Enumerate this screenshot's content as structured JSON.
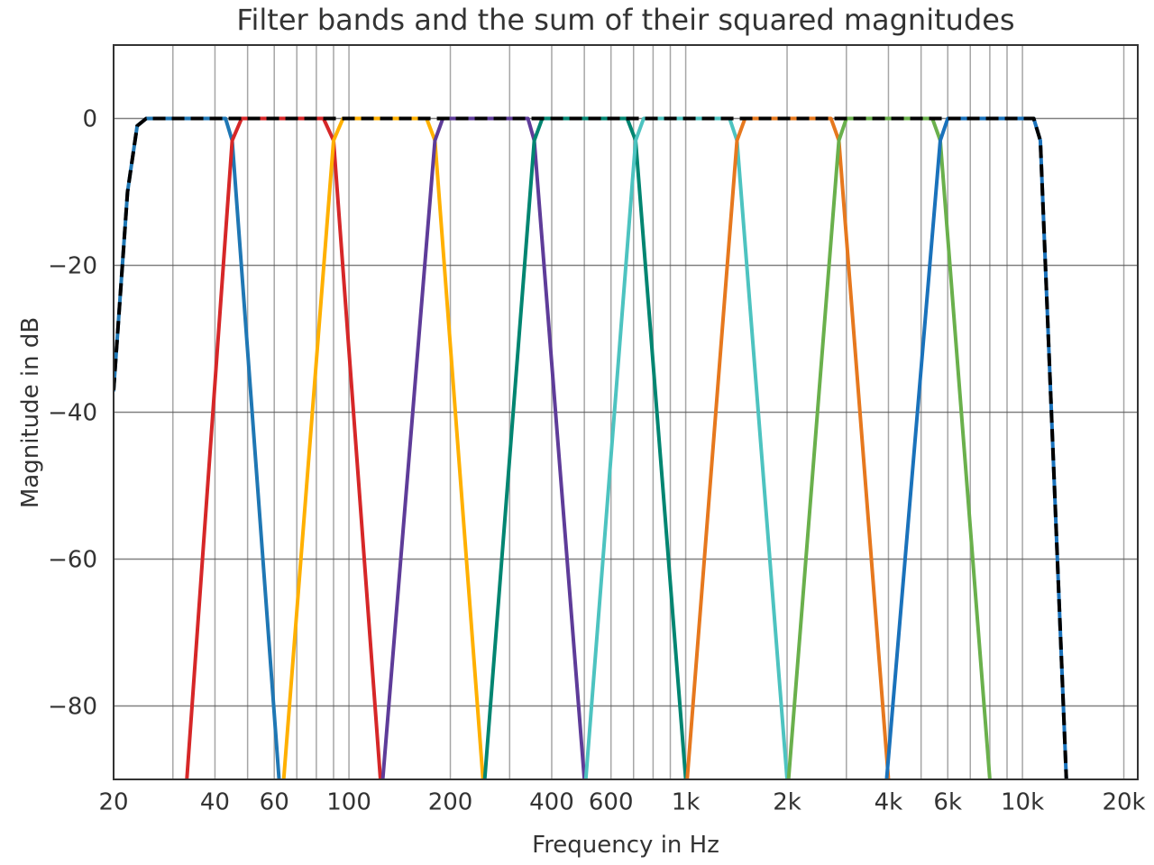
{
  "chart_data": {
    "type": "line",
    "title": "Filter bands and the sum of their squared magnitudes",
    "xlabel": "Frequency in Hz",
    "ylabel": "Magnitude in dB",
    "xscale": "log",
    "xlim": [
      20,
      22000
    ],
    "ylim": [
      -90,
      10
    ],
    "grid": true,
    "legend": "none",
    "x_ticks": [
      {
        "value": 20,
        "label": "20"
      },
      {
        "value": 40,
        "label": "40"
      },
      {
        "value": 60,
        "label": "60"
      },
      {
        "value": 100,
        "label": "100"
      },
      {
        "value": 200,
        "label": "200"
      },
      {
        "value": 400,
        "label": "400"
      },
      {
        "value": 600,
        "label": "600"
      },
      {
        "value": 1000,
        "label": "1k"
      },
      {
        "value": 2000,
        "label": "2k"
      },
      {
        "value": 4000,
        "label": "4k"
      },
      {
        "value": 6000,
        "label": "6k"
      },
      {
        "value": 10000,
        "label": "10k"
      },
      {
        "value": 20000,
        "label": "20k"
      }
    ],
    "x_minor_grid": [
      30,
      50,
      70,
      80,
      90,
      300,
      500,
      700,
      800,
      900,
      3000,
      5000,
      7000,
      8000,
      9000
    ],
    "y_ticks": [
      {
        "value": 0,
        "label": "0"
      },
      {
        "value": -20,
        "label": "−20"
      },
      {
        "value": -40,
        "label": "−40"
      },
      {
        "value": -60,
        "label": "−60"
      },
      {
        "value": -80,
        "label": "−80"
      }
    ],
    "series": [
      {
        "color": "#1f77b4",
        "points": [
          [
            20,
            -37
          ],
          [
            22,
            -10
          ],
          [
            23.5,
            -1
          ],
          [
            25,
            0
          ],
          [
            43,
            0
          ],
          [
            45,
            -3
          ],
          [
            62,
            -90
          ]
        ]
      },
      {
        "color": "#d62728",
        "points": [
          [
            33,
            -90
          ],
          [
            45,
            -3
          ],
          [
            48,
            0
          ],
          [
            84,
            0
          ],
          [
            90,
            -3
          ],
          [
            124,
            -90
          ]
        ]
      },
      {
        "color": "#ffb000",
        "points": [
          [
            64,
            -90
          ],
          [
            90,
            -3
          ],
          [
            96,
            0
          ],
          [
            170,
            0
          ],
          [
            180,
            -3
          ],
          [
            250,
            -90
          ]
        ]
      },
      {
        "color": "#5e3c99",
        "points": [
          [
            126,
            -90
          ],
          [
            180,
            -3
          ],
          [
            190,
            0
          ],
          [
            340,
            0
          ],
          [
            355,
            -3
          ],
          [
            500,
            -90
          ]
        ]
      },
      {
        "color": "#018571",
        "points": [
          [
            253,
            -90
          ],
          [
            355,
            -3
          ],
          [
            375,
            0
          ],
          [
            670,
            0
          ],
          [
            710,
            -3
          ],
          [
            1000,
            -90
          ]
        ]
      },
      {
        "color": "#4dc3c0",
        "points": [
          [
            505,
            -90
          ],
          [
            710,
            -3
          ],
          [
            750,
            0
          ],
          [
            1350,
            0
          ],
          [
            1420,
            -3
          ],
          [
            2000,
            -90
          ]
        ]
      },
      {
        "color": "#e6781e",
        "points": [
          [
            1010,
            -90
          ],
          [
            1420,
            -3
          ],
          [
            1500,
            0
          ],
          [
            2700,
            0
          ],
          [
            2850,
            -3
          ],
          [
            4000,
            -90
          ]
        ]
      },
      {
        "color": "#6ab04c",
        "points": [
          [
            2020,
            -90
          ],
          [
            2850,
            -3
          ],
          [
            3000,
            0
          ],
          [
            5400,
            0
          ],
          [
            5700,
            -3
          ],
          [
            8000,
            -90
          ]
        ]
      },
      {
        "color": "#1a72bb",
        "points": [
          [
            3950,
            -90
          ],
          [
            5700,
            -3
          ],
          [
            6000,
            0
          ],
          [
            10800,
            0
          ],
          [
            11300,
            -3
          ],
          [
            13500,
            -90
          ]
        ]
      }
    ],
    "sum": {
      "color": "#000000",
      "dash": "dashed",
      "points": [
        [
          20,
          -37
        ],
        [
          22,
          -10
        ],
        [
          23.5,
          -1
        ],
        [
          25,
          0
        ],
        [
          10800,
          0
        ],
        [
          11300,
          -3
        ],
        [
          13500,
          -90
        ]
      ]
    }
  }
}
